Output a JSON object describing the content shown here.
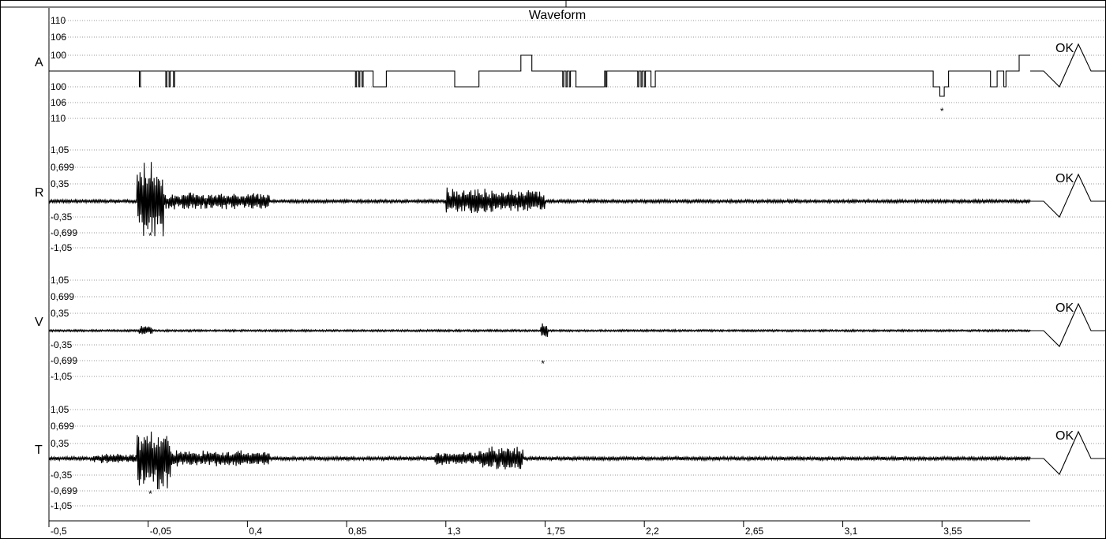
{
  "chart_data": {
    "type": "line",
    "title": "Waveform",
    "xlim": [
      -0.5,
      3.95
    ],
    "x_ticks": [
      "-0,5",
      "-0,05",
      "0,4",
      "0,85",
      "1,3",
      "1,75",
      "2,2",
      "2,65",
      "3,1",
      "3,55"
    ],
    "x_tick_values": [
      -0.5,
      -0.05,
      0.4,
      0.85,
      1.3,
      1.75,
      2.2,
      2.65,
      3.1,
      3.55
    ],
    "channels": [
      {
        "name": "A",
        "status": "OK",
        "kind": "step",
        "y_ticks": [
          "110",
          "106",
          "100",
          "100",
          "106",
          "110"
        ],
        "baseline_level": 0,
        "segments": [
          {
            "x0": -0.5,
            "x1": -0.09,
            "v": 0
          },
          {
            "x0": -0.09,
            "x1": -0.085,
            "v": -1
          },
          {
            "x0": -0.085,
            "x1": 0.03,
            "v": 0
          },
          {
            "x0": 0.03,
            "x1": 0.035,
            "v": -1
          },
          {
            "x0": 0.035,
            "x1": 0.045,
            "v": 0
          },
          {
            "x0": 0.045,
            "x1": 0.05,
            "v": -1
          },
          {
            "x0": 0.05,
            "x1": 0.065,
            "v": 0
          },
          {
            "x0": 0.065,
            "x1": 0.07,
            "v": -1
          },
          {
            "x0": 0.07,
            "x1": 0.89,
            "v": 0
          },
          {
            "x0": 0.89,
            "x1": 0.895,
            "v": -1
          },
          {
            "x0": 0.895,
            "x1": 0.905,
            "v": 0
          },
          {
            "x0": 0.905,
            "x1": 0.91,
            "v": -1
          },
          {
            "x0": 0.91,
            "x1": 0.92,
            "v": 0
          },
          {
            "x0": 0.92,
            "x1": 0.925,
            "v": -1
          },
          {
            "x0": 0.925,
            "x1": 0.97,
            "v": 0
          },
          {
            "x0": 0.97,
            "x1": 1.03,
            "v": -1
          },
          {
            "x0": 1.03,
            "x1": 1.34,
            "v": 0
          },
          {
            "x0": 1.34,
            "x1": 1.45,
            "v": -1
          },
          {
            "x0": 1.45,
            "x1": 1.64,
            "v": 0
          },
          {
            "x0": 1.64,
            "x1": 1.69,
            "v": 1
          },
          {
            "x0": 1.69,
            "x1": 1.83,
            "v": 0
          },
          {
            "x0": 1.83,
            "x1": 1.835,
            "v": -1
          },
          {
            "x0": 1.835,
            "x1": 1.845,
            "v": 0
          },
          {
            "x0": 1.845,
            "x1": 1.85,
            "v": -1
          },
          {
            "x0": 1.85,
            "x1": 1.86,
            "v": 0
          },
          {
            "x0": 1.86,
            "x1": 1.865,
            "v": -1
          },
          {
            "x0": 1.865,
            "x1": 1.89,
            "v": 0
          },
          {
            "x0": 1.89,
            "x1": 2.02,
            "v": -1
          },
          {
            "x0": 2.02,
            "x1": 2.025,
            "v": 0
          },
          {
            "x0": 2.025,
            "x1": 2.03,
            "v": -1
          },
          {
            "x0": 2.03,
            "x1": 2.17,
            "v": 0
          },
          {
            "x0": 2.17,
            "x1": 2.175,
            "v": -1
          },
          {
            "x0": 2.175,
            "x1": 2.185,
            "v": 0
          },
          {
            "x0": 2.185,
            "x1": 2.19,
            "v": -1
          },
          {
            "x0": 2.19,
            "x1": 2.2,
            "v": 0
          },
          {
            "x0": 2.2,
            "x1": 2.205,
            "v": -1
          },
          {
            "x0": 2.205,
            "x1": 2.23,
            "v": 0
          },
          {
            "x0": 2.23,
            "x1": 2.25,
            "v": -1
          },
          {
            "x0": 2.25,
            "x1": 3.51,
            "v": 0
          },
          {
            "x0": 3.51,
            "x1": 3.54,
            "v": -1
          },
          {
            "x0": 3.54,
            "x1": 3.56,
            "v": -1.6
          },
          {
            "x0": 3.56,
            "x1": 3.58,
            "v": -1
          },
          {
            "x0": 3.58,
            "x1": 3.77,
            "v": 0
          },
          {
            "x0": 3.77,
            "x1": 3.8,
            "v": -1
          },
          {
            "x0": 3.8,
            "x1": 3.83,
            "v": 0
          },
          {
            "x0": 3.83,
            "x1": 3.84,
            "v": -1
          },
          {
            "x0": 3.84,
            "x1": 3.9,
            "v": 0
          },
          {
            "x0": 3.9,
            "x1": 3.91,
            "v": 1
          },
          {
            "x0": 3.91,
            "x1": 3.95,
            "v": 1
          }
        ],
        "markers": [
          {
            "x": 3.55,
            "label": "*"
          }
        ]
      },
      {
        "name": "R",
        "status": "OK",
        "kind": "oscillation",
        "y_ticks": [
          "1,05",
          "0,699",
          "0,35",
          "-0,35",
          "-0,699",
          "-1,05"
        ],
        "noise": 0.03,
        "bursts": [
          {
            "x0": -0.1,
            "x1": 0.02,
            "amp": 0.8
          },
          {
            "x0": 0.02,
            "x1": 0.5,
            "amp": 0.18
          },
          {
            "x0": 1.3,
            "x1": 1.5,
            "amp": 0.3
          },
          {
            "x0": 1.5,
            "x1": 1.75,
            "amp": 0.25
          }
        ],
        "markers": [
          {
            "x": -0.04,
            "label": "*"
          }
        ]
      },
      {
        "name": "V",
        "status": "OK",
        "kind": "oscillation",
        "y_ticks": [
          "1,05",
          "0,699",
          "0,35",
          "-0,35",
          "-0,699",
          "-1,05"
        ],
        "noise": 0.02,
        "bursts": [
          {
            "x0": -0.09,
            "x1": -0.03,
            "amp": 0.1
          },
          {
            "x0": 1.73,
            "x1": 1.76,
            "amp": 0.2
          }
        ],
        "markers": [
          {
            "x": 1.74,
            "label": "*"
          }
        ]
      },
      {
        "name": "T",
        "status": "OK",
        "kind": "oscillation",
        "y_ticks": [
          "1,05",
          "0,699",
          "0,35",
          "-0,35",
          "-0,699",
          "-1,05"
        ],
        "noise": 0.04,
        "bursts": [
          {
            "x0": -0.3,
            "x1": -0.1,
            "amp": 0.12
          },
          {
            "x0": -0.1,
            "x1": 0.05,
            "amp": 0.75
          },
          {
            "x0": 0.05,
            "x1": 0.5,
            "amp": 0.2
          },
          {
            "x0": 1.25,
            "x1": 1.45,
            "amp": 0.18
          },
          {
            "x0": 1.45,
            "x1": 1.65,
            "amp": 0.3
          }
        ],
        "markers": [
          {
            "x": -0.04,
            "label": "*"
          }
        ]
      }
    ]
  }
}
